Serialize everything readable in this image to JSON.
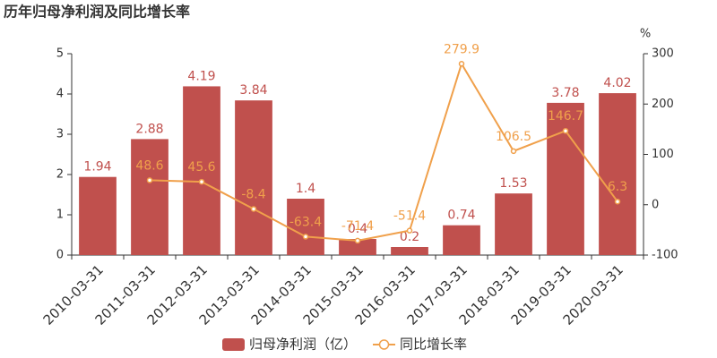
{
  "chart_data": {
    "type": "bar",
    "title": "历年归母净利润及同比增长率",
    "y2label": "%",
    "categories": [
      "2010-03-31",
      "2011-03-31",
      "2012-03-31",
      "2013-03-31",
      "2014-03-31",
      "2015-03-31",
      "2016-03-31",
      "2017-03-31",
      "2018-03-31",
      "2019-03-31",
      "2020-03-31"
    ],
    "series": [
      {
        "name": "归母净利润（亿）",
        "type": "bar",
        "color": "#c0504d",
        "values": [
          1.94,
          2.88,
          4.19,
          3.84,
          1.4,
          0.4,
          0.2,
          0.74,
          1.53,
          3.78,
          4.02
        ]
      },
      {
        "name": "同比增长率",
        "type": "line",
        "axis": "y2",
        "color": "#f0a04b",
        "values": [
          null,
          48.6,
          45.6,
          -8.4,
          -63.4,
          -71.4,
          -51.4,
          279.9,
          106.5,
          146.7,
          6.3
        ]
      }
    ],
    "ylim": [
      0,
      5
    ],
    "yticks": [
      0,
      1,
      2,
      3,
      4,
      5
    ],
    "y2lim": [
      -100,
      300
    ],
    "y2ticks": [
      -100,
      0,
      100,
      200,
      300
    ],
    "grid": false,
    "legend": "bottom"
  }
}
